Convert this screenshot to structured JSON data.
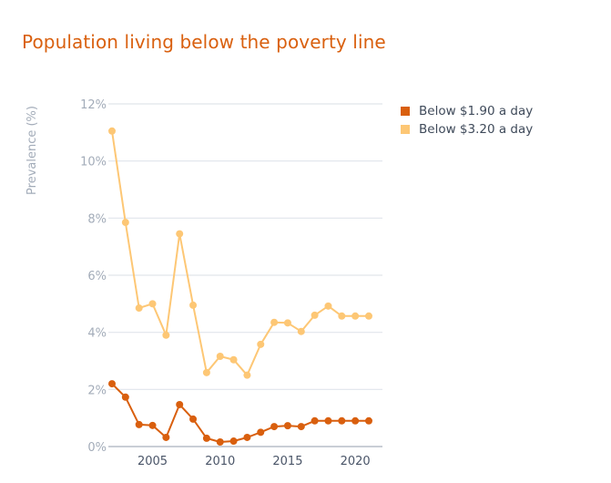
{
  "chart_data": {
    "type": "line",
    "title": "Population living below the poverty line",
    "xlabel": "",
    "ylabel": "Prevalence (%)",
    "ylim": [
      0,
      12
    ],
    "yticks": [
      0,
      2,
      4,
      6,
      8,
      10,
      12
    ],
    "ytick_labels": [
      "0%",
      "2%",
      "4%",
      "6%",
      "8%",
      "10%",
      "12%"
    ],
    "xlim": [
      2002,
      2021
    ],
    "xticks": [
      2005,
      2010,
      2015,
      2020
    ],
    "xtick_labels": [
      "2005",
      "2010",
      "2015",
      "2020"
    ],
    "grid": true,
    "legend_position": "top-right",
    "x": [
      2002,
      2003,
      2004,
      2005,
      2006,
      2007,
      2008,
      2009,
      2010,
      2011,
      2012,
      2013,
      2014,
      2015,
      2016,
      2017,
      2018,
      2019,
      2020,
      2021
    ],
    "series": [
      {
        "name": "Below $1.90 a day",
        "color": "#d95f0e",
        "values": [
          2.2,
          1.73,
          0.77,
          0.74,
          0.32,
          1.47,
          0.96,
          0.29,
          0.16,
          0.19,
          0.32,
          0.5,
          0.7,
          0.73,
          0.7,
          0.9,
          0.9,
          0.9,
          0.9,
          0.9
        ]
      },
      {
        "name": "Below $3.20 a day",
        "color": "#fdc775",
        "values": [
          11.05,
          7.85,
          4.85,
          5.0,
          3.9,
          7.45,
          4.95,
          2.59,
          3.16,
          3.04,
          2.5,
          3.58,
          4.35,
          4.33,
          4.03,
          4.6,
          4.92,
          4.57,
          4.57,
          4.57
        ]
      }
    ]
  }
}
